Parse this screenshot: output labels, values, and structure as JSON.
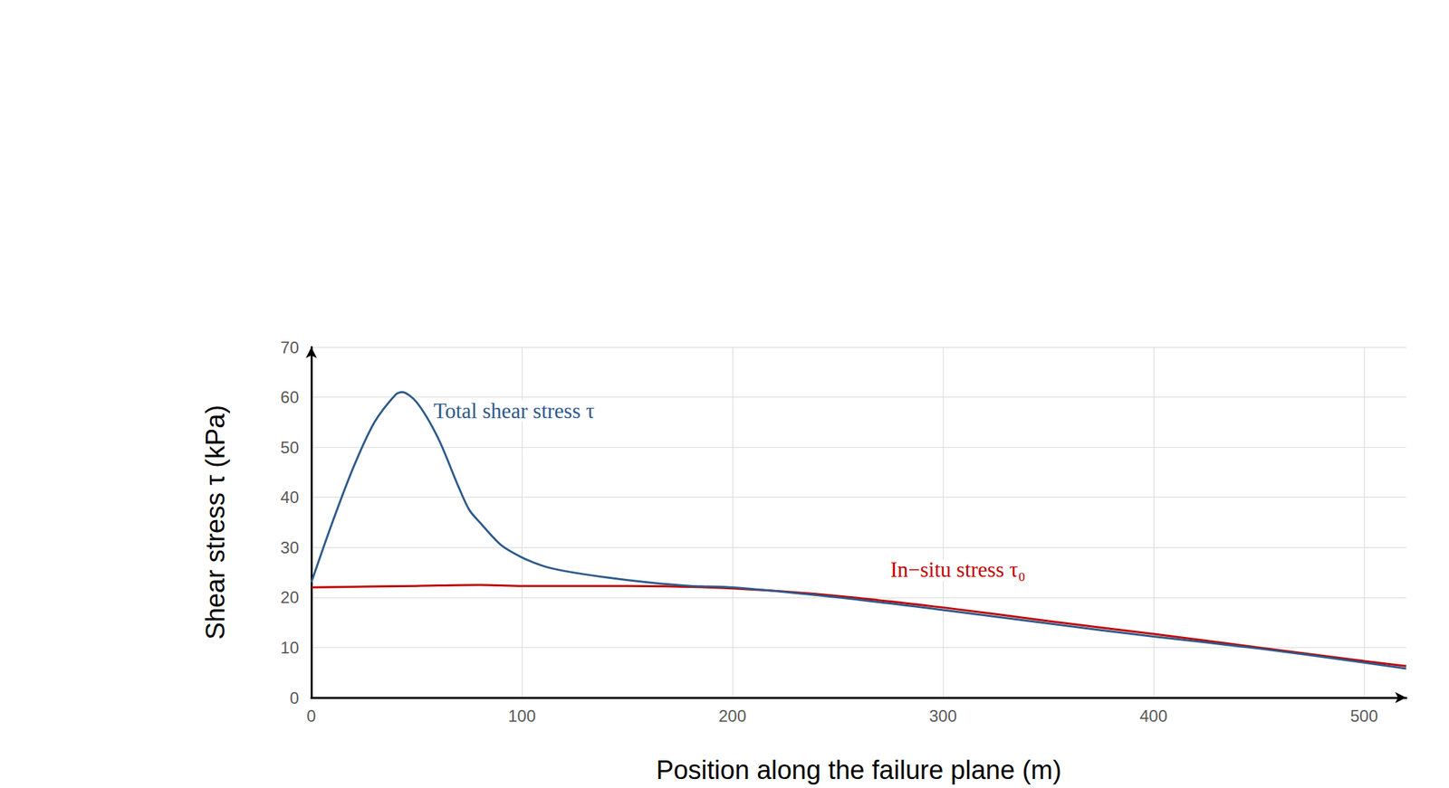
{
  "chart_data": {
    "type": "line",
    "xlabel": "Position along the failure plane (m)",
    "ylabel": "Shear stress τ (kPa)",
    "xlim": [
      0,
      520
    ],
    "xticks": [
      0,
      100,
      200,
      300,
      400,
      500
    ],
    "ylim": [
      0,
      70
    ],
    "yticks": [
      0,
      10,
      20,
      30,
      40,
      50,
      60,
      70
    ],
    "grid": true,
    "series": [
      {
        "name": "In−situ stress τ₀",
        "color": "#c00000",
        "x": [
          0,
          50,
          80,
          100,
          150,
          200,
          250,
          300,
          350,
          400,
          450,
          500,
          520
        ],
        "values": [
          22,
          22.3,
          22.5,
          22.3,
          22.3,
          21.8,
          20.3,
          18,
          15.3,
          12.7,
          10,
          7.3,
          6.3
        ]
      },
      {
        "name": "Total shear stress τ",
        "color": "#2e5a8c",
        "x": [
          0,
          10,
          20,
          30,
          40,
          43,
          50,
          60,
          70,
          75,
          80,
          90,
          100,
          110,
          120,
          140,
          160,
          180,
          200,
          250,
          300,
          350,
          400,
          450,
          500,
          520
        ],
        "values": [
          23,
          35,
          46,
          55,
          60.5,
          61,
          59,
          52,
          42,
          37.5,
          35,
          30.5,
          28,
          26.3,
          25.3,
          24,
          23,
          22.3,
          22,
          20,
          17.5,
          14.8,
          12.2,
          9.8,
          7,
          5.8
        ]
      }
    ],
    "annotations": [
      {
        "text": "Total shear stress τ",
        "x": 58,
        "y": 57.3,
        "color": "#2e5a8c"
      },
      {
        "text": "In−situ stress τ₀",
        "x": 275,
        "y": 25.5,
        "color": "#c00000"
      }
    ]
  }
}
